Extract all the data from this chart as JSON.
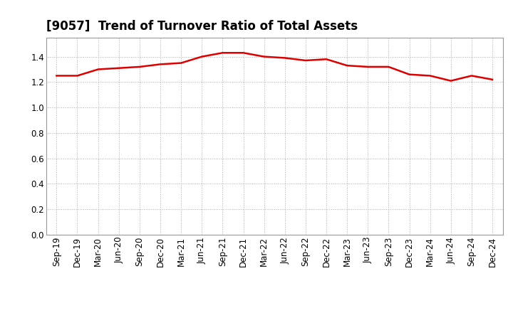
{
  "title": "[9057]  Trend of Turnover Ratio of Total Assets",
  "x_labels": [
    "Sep-19",
    "Dec-19",
    "Mar-20",
    "Jun-20",
    "Sep-20",
    "Dec-20",
    "Mar-21",
    "Jun-21",
    "Sep-21",
    "Dec-21",
    "Mar-22",
    "Jun-22",
    "Sep-22",
    "Dec-22",
    "Mar-23",
    "Jun-23",
    "Sep-23",
    "Dec-23",
    "Mar-24",
    "Jun-24",
    "Sep-24",
    "Dec-24"
  ],
  "y_values": [
    1.25,
    1.25,
    1.3,
    1.31,
    1.32,
    1.34,
    1.35,
    1.4,
    1.43,
    1.43,
    1.4,
    1.39,
    1.37,
    1.38,
    1.33,
    1.32,
    1.32,
    1.26,
    1.25,
    1.21,
    1.25,
    1.22
  ],
  "line_color": "#dd0000",
  "line_width": 1.8,
  "background_color": "#ffffff",
  "plot_bg_color": "#ffffff",
  "grid_color": "#aaaaaa",
  "ylim": [
    0.0,
    1.55
  ],
  "yticks": [
    0.0,
    0.2,
    0.4,
    0.6,
    0.8,
    1.0,
    1.2,
    1.4
  ],
  "title_fontsize": 12,
  "tick_fontsize": 8.5
}
